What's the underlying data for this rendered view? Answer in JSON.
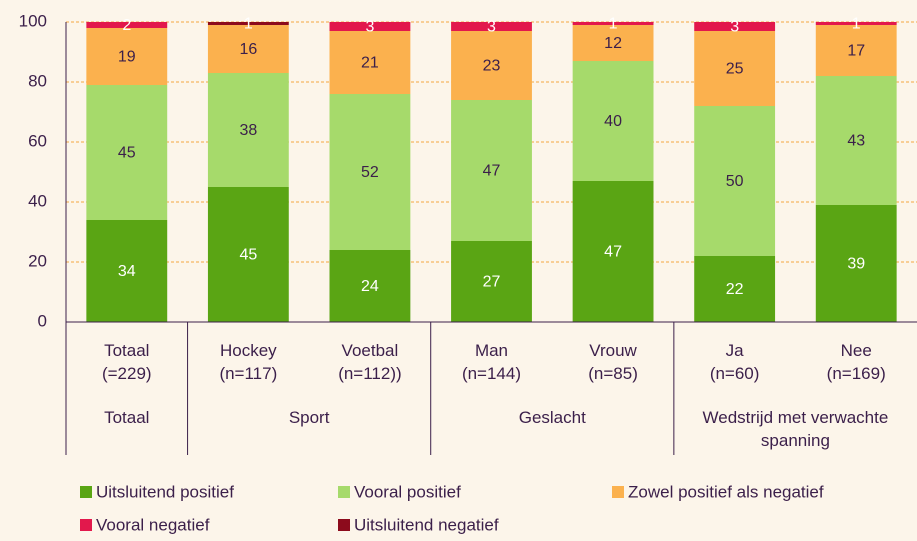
{
  "chart_data": {
    "type": "stacked_bar",
    "categories": [
      "Totaal\n(=229)",
      "Hockey\n(n=117)",
      "Voetbal\n(n=112))",
      "Man\n(n=144)",
      "Vrouw\n(n=85)",
      "Ja\n(n=60)",
      "Nee\n(n=169)"
    ],
    "groups": [
      "Totaal",
      "Sport",
      "Geslacht",
      "Wedstrijd met verwachte spanning"
    ],
    "series": [
      {
        "name": "Uitsluitend positief",
        "color": "#5aa514",
        "label_color": "#ffffff",
        "values": [
          34,
          45,
          24,
          27,
          47,
          22,
          39
        ]
      },
      {
        "name": "Vooral positief",
        "color": "#a6da6b",
        "label_color": "#3b1f4a",
        "values": [
          45,
          38,
          52,
          47,
          40,
          50,
          43
        ]
      },
      {
        "name": "Zowel positief als negatief",
        "color": "#fbb14e",
        "label_color": "#3b1f4a",
        "values": [
          19,
          16,
          21,
          23,
          12,
          25,
          17
        ]
      },
      {
        "name": "Vooral negatief",
        "color": "#e2184c",
        "label_color": "#ffffff",
        "values": [
          2,
          0,
          3,
          3,
          1,
          3,
          1
        ]
      },
      {
        "name": "Uitsluitend negatief",
        "color": "#8c0b1c",
        "label_color": "#ffffff",
        "values": [
          0,
          1,
          0,
          0,
          0,
          0,
          0
        ]
      }
    ],
    "ylim": [
      0,
      100
    ],
    "yticks": [
      0,
      20,
      40,
      60,
      80,
      100
    ],
    "grid": true,
    "legend": "bottom"
  }
}
